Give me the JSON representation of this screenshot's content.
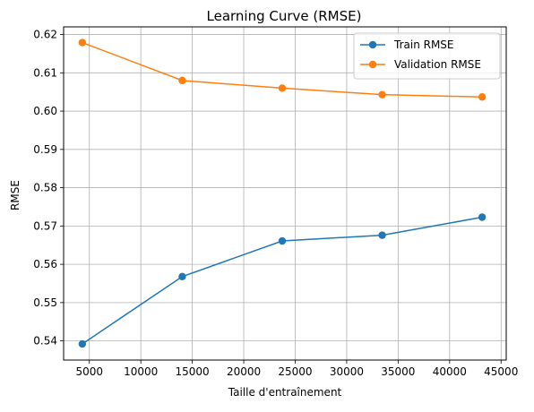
{
  "chart_data": {
    "type": "line",
    "title": "Learning Curve (RMSE)",
    "xlabel": "Taille d'entraînement",
    "ylabel": "RMSE",
    "xlim": [
      2500,
      45500
    ],
    "ylim": [
      0.535,
      0.622
    ],
    "grid": true,
    "legend_position": "top-right",
    "x_ticks": [
      5000,
      10000,
      15000,
      20000,
      25000,
      30000,
      35000,
      40000,
      45000
    ],
    "y_ticks": [
      0.54,
      0.55,
      0.56,
      0.57,
      0.58,
      0.59,
      0.6,
      0.61,
      0.62
    ],
    "x_tick_labels": [
      "5000",
      "10000",
      "15000",
      "20000",
      "25000",
      "30000",
      "35000",
      "40000",
      "45000"
    ],
    "y_tick_labels": [
      "0.54",
      "0.55",
      "0.56",
      "0.57",
      "0.58",
      "0.59",
      "0.60",
      "0.61",
      "0.62"
    ],
    "x": [
      4315,
      14026,
      23738,
      33449,
      43160
    ],
    "series": [
      {
        "name": "Train RMSE",
        "color": "#1f77b4",
        "marker": "circle",
        "values": [
          0.5392,
          0.5568,
          0.5661,
          0.5676,
          0.5723
        ]
      },
      {
        "name": "Validation RMSE",
        "color": "#ff7f0e",
        "marker": "circle",
        "values": [
          0.6179,
          0.608,
          0.606,
          0.6043,
          0.6037
        ]
      }
    ]
  }
}
